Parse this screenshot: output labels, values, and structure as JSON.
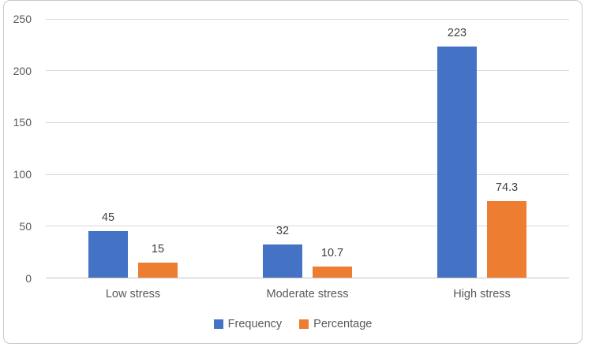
{
  "chart_data": {
    "type": "bar",
    "title": "",
    "xlabel": "",
    "ylabel": "",
    "categories": [
      "Low stress",
      "Moderate stress",
      "High stress"
    ],
    "series": [
      {
        "name": "Frequency",
        "color": "#4472C4",
        "values": [
          45,
          32,
          223
        ]
      },
      {
        "name": "Percentage",
        "color": "#ED7D31",
        "values": [
          15,
          10.7,
          74.3
        ]
      }
    ],
    "data_labels": [
      "45",
      "15",
      "32",
      "10.7",
      "223",
      "74.3"
    ],
    "ylim": [
      0,
      250
    ],
    "yticks": [
      0,
      50,
      100,
      150,
      200,
      250
    ],
    "grid": true,
    "legend_position": "bottom",
    "colors": {
      "background": "#FFFFFF",
      "frame_border": "#C9C9C9",
      "gridline": "#D9D9D9",
      "axis_line": "#C1C1C1",
      "tick_text": "#595959",
      "data_label_text": "#404040"
    }
  }
}
